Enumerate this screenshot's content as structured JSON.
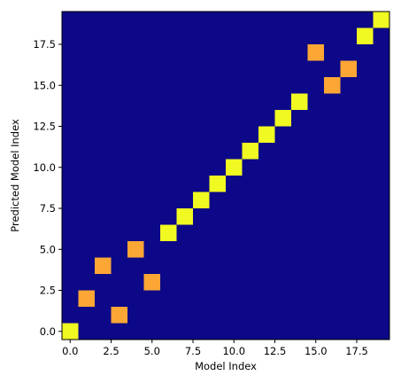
{
  "chart_data": {
    "type": "heatmap",
    "title": "",
    "xlabel": "Model Index",
    "ylabel": "Predicted Model Index",
    "n": 20,
    "xlim": [
      -0.5,
      19.5
    ],
    "ylim": [
      -0.5,
      19.5
    ],
    "xticks": [
      0.0,
      2.5,
      5.0,
      7.5,
      10.0,
      12.5,
      15.0,
      17.5
    ],
    "xtick_labels": [
      "0.0",
      "2.5",
      "5.0",
      "7.5",
      "10.0",
      "12.5",
      "15.0",
      "17.5"
    ],
    "yticks": [
      0.0,
      2.5,
      5.0,
      7.5,
      10.0,
      12.5,
      15.0,
      17.5
    ],
    "ytick_labels": [
      "0.0",
      "2.5",
      "5.0",
      "7.5",
      "10.0",
      "12.5",
      "15.0",
      "17.5"
    ],
    "background_value": 0,
    "colormap": "plasma",
    "colors": {
      "background": "#0d0887",
      "high": "#f0f921",
      "medium": "#fca636"
    },
    "cells": [
      {
        "x": 0,
        "y": 0,
        "level": "high"
      },
      {
        "x": 1,
        "y": 2,
        "level": "medium"
      },
      {
        "x": 2,
        "y": 4,
        "level": "medium"
      },
      {
        "x": 3,
        "y": 1,
        "level": "medium"
      },
      {
        "x": 4,
        "y": 5,
        "level": "medium"
      },
      {
        "x": 5,
        "y": 3,
        "level": "medium"
      },
      {
        "x": 6,
        "y": 6,
        "level": "high"
      },
      {
        "x": 7,
        "y": 7,
        "level": "high"
      },
      {
        "x": 8,
        "y": 8,
        "level": "high"
      },
      {
        "x": 9,
        "y": 9,
        "level": "high"
      },
      {
        "x": 10,
        "y": 10,
        "level": "high"
      },
      {
        "x": 11,
        "y": 11,
        "level": "high"
      },
      {
        "x": 12,
        "y": 12,
        "level": "high"
      },
      {
        "x": 13,
        "y": 13,
        "level": "high"
      },
      {
        "x": 14,
        "y": 14,
        "level": "high"
      },
      {
        "x": 15,
        "y": 17,
        "level": "medium"
      },
      {
        "x": 16,
        "y": 15,
        "level": "medium"
      },
      {
        "x": 17,
        "y": 16,
        "level": "medium"
      },
      {
        "x": 18,
        "y": 18,
        "level": "high"
      },
      {
        "x": 19,
        "y": 19,
        "level": "high"
      }
    ]
  }
}
